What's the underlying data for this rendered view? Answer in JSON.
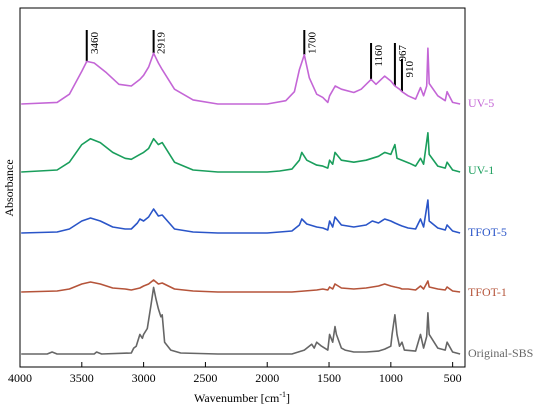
{
  "chart_data": {
    "type": "line",
    "title": "",
    "xlabel": "Wavenumber [cm",
    "xlabel_sup": "-1",
    "xlabel_suffix": "]",
    "ylabel": "Absorbance",
    "xlim": [
      4000,
      400
    ],
    "x_reversed": true,
    "y_ticks_shown": false,
    "grid": false,
    "xticks": [
      {
        "value": 4000,
        "label": "4000"
      },
      {
        "value": 3500,
        "label": "3500"
      },
      {
        "value": 3000,
        "label": "3000"
      },
      {
        "value": 2500,
        "label": "2500"
      },
      {
        "value": 2000,
        "label": "2000"
      },
      {
        "value": 1500,
        "label": "1500"
      },
      {
        "value": 1000,
        "label": "1000"
      },
      {
        "value": 500,
        "label": "500"
      }
    ],
    "annotations": [
      {
        "x": 3460,
        "label": "3460"
      },
      {
        "x": 2919,
        "label": "2919"
      },
      {
        "x": 1700,
        "label": "1700"
      },
      {
        "x": 1160,
        "label": "1160"
      },
      {
        "x": 967,
        "label": "967"
      },
      {
        "x": 910,
        "label": "910"
      }
    ],
    "series": [
      {
        "name": "UV-5",
        "color": "#c466d6",
        "points": [
          [
            3990,
            0.0
          ],
          [
            3700,
            0.02
          ],
          [
            3600,
            0.12
          ],
          [
            3500,
            0.4
          ],
          [
            3460,
            0.52
          ],
          [
            3400,
            0.5
          ],
          [
            3300,
            0.38
          ],
          [
            3200,
            0.24
          ],
          [
            3100,
            0.22
          ],
          [
            3030,
            0.3
          ],
          [
            3000,
            0.35
          ],
          [
            2960,
            0.45
          ],
          [
            2919,
            0.62
          ],
          [
            2880,
            0.5
          ],
          [
            2850,
            0.42
          ],
          [
            2750,
            0.18
          ],
          [
            2600,
            0.05
          ],
          [
            2400,
            0.0
          ],
          [
            2000,
            0.0
          ],
          [
            1850,
            0.04
          ],
          [
            1780,
            0.15
          ],
          [
            1740,
            0.42
          ],
          [
            1700,
            0.6
          ],
          [
            1660,
            0.32
          ],
          [
            1600,
            0.12
          ],
          [
            1550,
            0.08
          ],
          [
            1510,
            0.02
          ],
          [
            1495,
            0.1
          ],
          [
            1450,
            0.22
          ],
          [
            1400,
            0.18
          ],
          [
            1300,
            0.14
          ],
          [
            1240,
            0.18
          ],
          [
            1160,
            0.3
          ],
          [
            1120,
            0.24
          ],
          [
            1050,
            0.34
          ],
          [
            1000,
            0.28
          ],
          [
            967,
            0.22
          ],
          [
            930,
            0.18
          ],
          [
            910,
            0.15
          ],
          [
            860,
            0.1
          ],
          [
            800,
            0.06
          ],
          [
            760,
            0.2
          ],
          [
            735,
            0.1
          ],
          [
            710,
            0.22
          ],
          [
            700,
            0.68
          ],
          [
            690,
            0.25
          ],
          [
            620,
            0.1
          ],
          [
            560,
            0.04
          ],
          [
            545,
            0.15
          ],
          [
            500,
            0.02
          ],
          [
            440,
            0.0
          ]
        ]
      },
      {
        "name": "UV-1",
        "color": "#1a9e5c",
        "points": [
          [
            3990,
            0.0
          ],
          [
            3700,
            0.02
          ],
          [
            3600,
            0.1
          ],
          [
            3500,
            0.28
          ],
          [
            3430,
            0.34
          ],
          [
            3350,
            0.3
          ],
          [
            3250,
            0.2
          ],
          [
            3150,
            0.14
          ],
          [
            3100,
            0.13
          ],
          [
            3030,
            0.18
          ],
          [
            3000,
            0.2
          ],
          [
            2960,
            0.24
          ],
          [
            2919,
            0.34
          ],
          [
            2880,
            0.28
          ],
          [
            2850,
            0.3
          ],
          [
            2750,
            0.1
          ],
          [
            2600,
            0.02
          ],
          [
            2400,
            0.0
          ],
          [
            2000,
            0.0
          ],
          [
            1900,
            0.01
          ],
          [
            1800,
            0.03
          ],
          [
            1740,
            0.12
          ],
          [
            1720,
            0.2
          ],
          [
            1680,
            0.12
          ],
          [
            1600,
            0.07
          ],
          [
            1550,
            0.06
          ],
          [
            1510,
            0.04
          ],
          [
            1495,
            0.12
          ],
          [
            1470,
            0.08
          ],
          [
            1452,
            0.2
          ],
          [
            1400,
            0.12
          ],
          [
            1300,
            0.1
          ],
          [
            1200,
            0.12
          ],
          [
            1100,
            0.16
          ],
          [
            1050,
            0.2
          ],
          [
            1000,
            0.18
          ],
          [
            967,
            0.28
          ],
          [
            950,
            0.14
          ],
          [
            910,
            0.12
          ],
          [
            850,
            0.09
          ],
          [
            800,
            0.06
          ],
          [
            760,
            0.14
          ],
          [
            735,
            0.08
          ],
          [
            700,
            0.4
          ],
          [
            690,
            0.18
          ],
          [
            620,
            0.06
          ],
          [
            560,
            0.04
          ],
          [
            545,
            0.1
          ],
          [
            500,
            0.02
          ],
          [
            440,
            0.0
          ]
        ]
      },
      {
        "name": "TFOT-5",
        "color": "#2a55c8",
        "points": [
          [
            3990,
            0.0
          ],
          [
            3700,
            0.01
          ],
          [
            3600,
            0.04
          ],
          [
            3500,
            0.12
          ],
          [
            3430,
            0.15
          ],
          [
            3350,
            0.12
          ],
          [
            3250,
            0.06
          ],
          [
            3150,
            0.04
          ],
          [
            3100,
            0.04
          ],
          [
            3050,
            0.1
          ],
          [
            3030,
            0.14
          ],
          [
            3000,
            0.12
          ],
          [
            2960,
            0.16
          ],
          [
            2919,
            0.24
          ],
          [
            2880,
            0.17
          ],
          [
            2850,
            0.18
          ],
          [
            2750,
            0.04
          ],
          [
            2600,
            0.01
          ],
          [
            2400,
            0.0
          ],
          [
            2000,
            0.0
          ],
          [
            1900,
            0.01
          ],
          [
            1800,
            0.02
          ],
          [
            1740,
            0.08
          ],
          [
            1720,
            0.14
          ],
          [
            1680,
            0.09
          ],
          [
            1600,
            0.06
          ],
          [
            1550,
            0.05
          ],
          [
            1510,
            0.03
          ],
          [
            1495,
            0.12
          ],
          [
            1470,
            0.06
          ],
          [
            1452,
            0.16
          ],
          [
            1400,
            0.08
          ],
          [
            1300,
            0.06
          ],
          [
            1200,
            0.08
          ],
          [
            1150,
            0.12
          ],
          [
            1100,
            0.1
          ],
          [
            1050,
            0.14
          ],
          [
            1000,
            0.12
          ],
          [
            967,
            0.1
          ],
          [
            930,
            0.08
          ],
          [
            910,
            0.07
          ],
          [
            860,
            0.05
          ],
          [
            800,
            0.04
          ],
          [
            760,
            0.14
          ],
          [
            735,
            0.06
          ],
          [
            700,
            0.33
          ],
          [
            690,
            0.12
          ],
          [
            620,
            0.05
          ],
          [
            560,
            0.03
          ],
          [
            545,
            0.08
          ],
          [
            500,
            0.02
          ],
          [
            440,
            0.0
          ]
        ]
      },
      {
        "name": "TFOT-1",
        "color": "#b5543a",
        "points": [
          [
            3990,
            0.0
          ],
          [
            3700,
            0.01
          ],
          [
            3600,
            0.03
          ],
          [
            3500,
            0.08
          ],
          [
            3430,
            0.1
          ],
          [
            3350,
            0.08
          ],
          [
            3250,
            0.04
          ],
          [
            3150,
            0.03
          ],
          [
            3100,
            0.02
          ],
          [
            3030,
            0.04
          ],
          [
            3000,
            0.06
          ],
          [
            2960,
            0.08
          ],
          [
            2919,
            0.12
          ],
          [
            2880,
            0.08
          ],
          [
            2850,
            0.09
          ],
          [
            2750,
            0.03
          ],
          [
            2600,
            0.01
          ],
          [
            2400,
            0.0
          ],
          [
            2000,
            0.0
          ],
          [
            1800,
            0.0
          ],
          [
            1700,
            0.01
          ],
          [
            1600,
            0.02
          ],
          [
            1550,
            0.03
          ],
          [
            1510,
            0.02
          ],
          [
            1495,
            0.05
          ],
          [
            1470,
            0.03
          ],
          [
            1452,
            0.08
          ],
          [
            1400,
            0.04
          ],
          [
            1300,
            0.03
          ],
          [
            1200,
            0.04
          ],
          [
            1100,
            0.06
          ],
          [
            1050,
            0.08
          ],
          [
            1000,
            0.06
          ],
          [
            967,
            0.05
          ],
          [
            930,
            0.04
          ],
          [
            910,
            0.03
          ],
          [
            860,
            0.03
          ],
          [
            800,
            0.02
          ],
          [
            760,
            0.06
          ],
          [
            735,
            0.03
          ],
          [
            700,
            0.11
          ],
          [
            690,
            0.05
          ],
          [
            620,
            0.03
          ],
          [
            560,
            0.02
          ],
          [
            545,
            0.05
          ],
          [
            500,
            0.01
          ],
          [
            440,
            0.0
          ]
        ]
      },
      {
        "name": "Original-SBS",
        "color": "#666666",
        "points": [
          [
            3990,
            0.0
          ],
          [
            3780,
            0.0
          ],
          [
            3740,
            0.02
          ],
          [
            3700,
            0.0
          ],
          [
            3400,
            0.0
          ],
          [
            3380,
            0.02
          ],
          [
            3340,
            0.0
          ],
          [
            3100,
            0.01
          ],
          [
            3080,
            0.06
          ],
          [
            3060,
            0.08
          ],
          [
            3030,
            0.2
          ],
          [
            3010,
            0.16
          ],
          [
            3000,
            0.2
          ],
          [
            2970,
            0.26
          ],
          [
            2940,
            0.5
          ],
          [
            2919,
            0.68
          ],
          [
            2900,
            0.56
          ],
          [
            2880,
            0.46
          ],
          [
            2860,
            0.38
          ],
          [
            2850,
            0.4
          ],
          [
            2830,
            0.12
          ],
          [
            2780,
            0.04
          ],
          [
            2700,
            0.01
          ],
          [
            2400,
            0.0
          ],
          [
            2000,
            0.0
          ],
          [
            1800,
            0.0
          ],
          [
            1700,
            0.04
          ],
          [
            1640,
            0.1
          ],
          [
            1620,
            0.06
          ],
          [
            1600,
            0.12
          ],
          [
            1560,
            0.08
          ],
          [
            1510,
            0.04
          ],
          [
            1495,
            0.2
          ],
          [
            1470,
            0.12
          ],
          [
            1452,
            0.28
          ],
          [
            1440,
            0.2
          ],
          [
            1400,
            0.06
          ],
          [
            1370,
            0.04
          ],
          [
            1300,
            0.02
          ],
          [
            1200,
            0.02
          ],
          [
            1100,
            0.03
          ],
          [
            1050,
            0.05
          ],
          [
            1000,
            0.08
          ],
          [
            990,
            0.2
          ],
          [
            967,
            0.4
          ],
          [
            950,
            0.2
          ],
          [
            930,
            0.08
          ],
          [
            910,
            0.12
          ],
          [
            890,
            0.04
          ],
          [
            800,
            0.03
          ],
          [
            760,
            0.2
          ],
          [
            735,
            0.06
          ],
          [
            710,
            0.18
          ],
          [
            700,
            0.42
          ],
          [
            690,
            0.2
          ],
          [
            620,
            0.06
          ],
          [
            560,
            0.04
          ],
          [
            545,
            0.12
          ],
          [
            500,
            0.02
          ],
          [
            440,
            0.0
          ]
        ]
      }
    ]
  }
}
